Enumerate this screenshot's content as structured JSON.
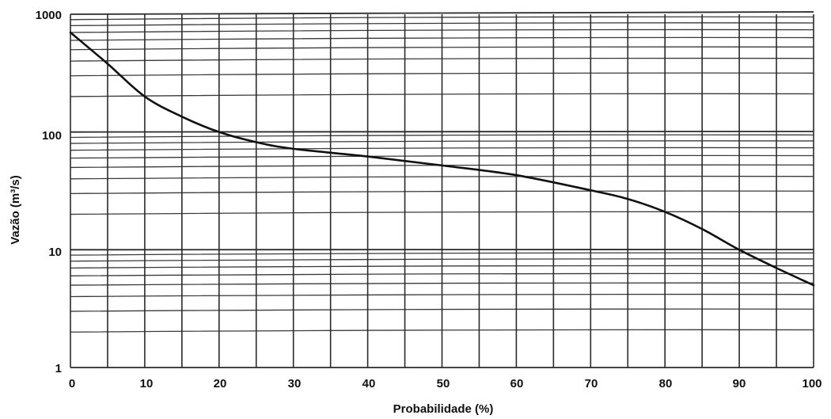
{
  "chart_data": {
    "type": "line",
    "title": "",
    "xlabel": "Probabilidade (%)",
    "ylabel": "Vazão (m³/s)",
    "xlim": [
      0,
      100
    ],
    "ylim": [
      1,
      1000
    ],
    "y_scale": "log",
    "grid": true,
    "x_ticks": [
      "0",
      "10",
      "20",
      "30",
      "40",
      "50",
      "60",
      "70",
      "80",
      "90",
      "100"
    ],
    "y_ticks": [
      "1",
      "10",
      "100",
      "1000"
    ],
    "series": [
      {
        "x": [
          0,
          5,
          10,
          15,
          20,
          25,
          30,
          40,
          50,
          60,
          70,
          75,
          80,
          85,
          90,
          95,
          100
        ],
        "y": [
          700,
          380,
          200,
          135,
          100,
          82,
          72,
          62,
          52,
          43,
          32,
          27,
          21,
          15,
          10,
          7,
          5
        ]
      }
    ]
  }
}
